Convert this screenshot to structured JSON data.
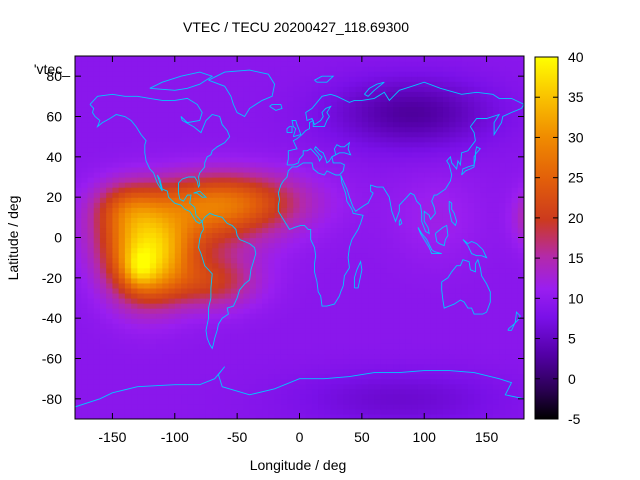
{
  "chart_data": {
    "type": "heatmap",
    "title": "VTEC / TECU 20200427_118.69300",
    "xlabel": "Longitude / deg",
    "ylabel": "Latitude / deg",
    "xlim": [
      -180,
      180
    ],
    "ylim": [
      -90,
      90
    ],
    "xticks": [
      -150,
      -100,
      -50,
      0,
      50,
      100,
      150
    ],
    "yticks": [
      -80,
      -60,
      -40,
      -20,
      0,
      20,
      40,
      60,
      80
    ],
    "colorbar": {
      "label": "VTEC / TECU",
      "range": [
        -5,
        40
      ],
      "ticks": [
        -5,
        0,
        5,
        10,
        15,
        20,
        25,
        30,
        35,
        40
      ],
      "colormap": "gnuplot pm3d (black-purple-red-orange-yellow)"
    },
    "legend_entry": "'vtec_",
    "overlay": "world coastlines",
    "regions": [
      {
        "name": "background",
        "value": 8
      },
      {
        "name": "equatorial anomaly over Pacific/Americas",
        "lon_range": [
          -165,
          -60
        ],
        "lat_range": [
          -35,
          35
        ],
        "value": 25
      },
      {
        "name": "peak",
        "lon": -128,
        "lat": -15,
        "value": 38
      },
      {
        "name": "northern crest over Atlantic",
        "lon_range": [
          -80,
          -10
        ],
        "lat_range": [
          5,
          35
        ],
        "value": 24
      },
      {
        "name": "low over Siberia",
        "lon_range": [
          40,
          140
        ],
        "lat_range": [
          45,
          75
        ],
        "value": 2
      }
    ]
  }
}
